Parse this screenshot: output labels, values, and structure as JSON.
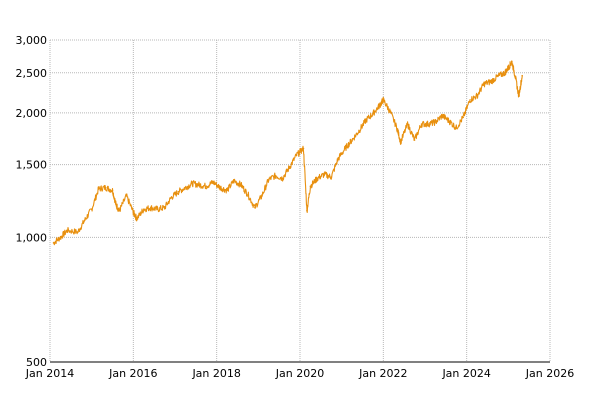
{
  "chart_data": {
    "type": "line",
    "title": "",
    "xlabel": "",
    "ylabel": "",
    "y_scale": "log",
    "ylim": [
      500,
      3000
    ],
    "xlim": [
      "2014-01",
      "2026-01"
    ],
    "grid": true,
    "legend": "none",
    "x_ticks": [
      "Jan 2014",
      "Jan 2016",
      "Jan 2018",
      "Jan 2020",
      "Jan 2022",
      "Jan 2024",
      "Jan 2026"
    ],
    "y_ticks": [
      "500",
      "1,000",
      "1,500",
      "2,000",
      "2,500",
      "3,000"
    ],
    "y_tick_values": [
      500,
      1000,
      1500,
      2000,
      2500,
      3000
    ],
    "series": [
      {
        "color": "#E8900F",
        "x": [
          "2014-02",
          "2014-04",
          "2014-06",
          "2014-09",
          "2014-11",
          "2015-01",
          "2015-03",
          "2015-05",
          "2015-07",
          "2015-08",
          "2015-09",
          "2015-11",
          "2016-01",
          "2016-02",
          "2016-04",
          "2016-06",
          "2016-08",
          "2016-10",
          "2016-12",
          "2017-02",
          "2017-04",
          "2017-06",
          "2017-08",
          "2017-10",
          "2017-12",
          "2018-02",
          "2018-04",
          "2018-06",
          "2018-08",
          "2018-10",
          "2018-12",
          "2019-02",
          "2019-04",
          "2019-06",
          "2019-08",
          "2019-10",
          "2019-12",
          "2020-02",
          "2020-03",
          "2020-04",
          "2020-06",
          "2020-08",
          "2020-10",
          "2020-12",
          "2021-02",
          "2021-04",
          "2021-06",
          "2021-08",
          "2021-10",
          "2021-12",
          "2022-01",
          "2022-03",
          "2022-05",
          "2022-06",
          "2022-08",
          "2022-10",
          "2022-12",
          "2023-02",
          "2023-04",
          "2023-06",
          "2023-08",
          "2023-10",
          "2023-12",
          "2024-02",
          "2024-04",
          "2024-06",
          "2024-08",
          "2024-10",
          "2024-12",
          "2025-01",
          "2025-02",
          "2025-03",
          "2025-04",
          "2025-05"
        ],
        "values": [
          970,
          1000,
          1040,
          1030,
          1100,
          1170,
          1310,
          1320,
          1300,
          1200,
          1160,
          1260,
          1150,
          1110,
          1170,
          1180,
          1170,
          1180,
          1250,
          1290,
          1320,
          1350,
          1340,
          1330,
          1360,
          1320,
          1300,
          1370,
          1340,
          1270,
          1180,
          1260,
          1380,
          1410,
          1390,
          1480,
          1580,
          1640,
          1160,
          1330,
          1390,
          1420,
          1400,
          1550,
          1640,
          1720,
          1810,
          1920,
          1990,
          2090,
          2150,
          2010,
          1830,
          1700,
          1880,
          1720,
          1880,
          1880,
          1900,
          1970,
          1910,
          1840,
          1950,
          2150,
          2200,
          2350,
          2380,
          2450,
          2500,
          2570,
          2660,
          2450,
          2200,
          2460
        ]
      }
    ]
  }
}
